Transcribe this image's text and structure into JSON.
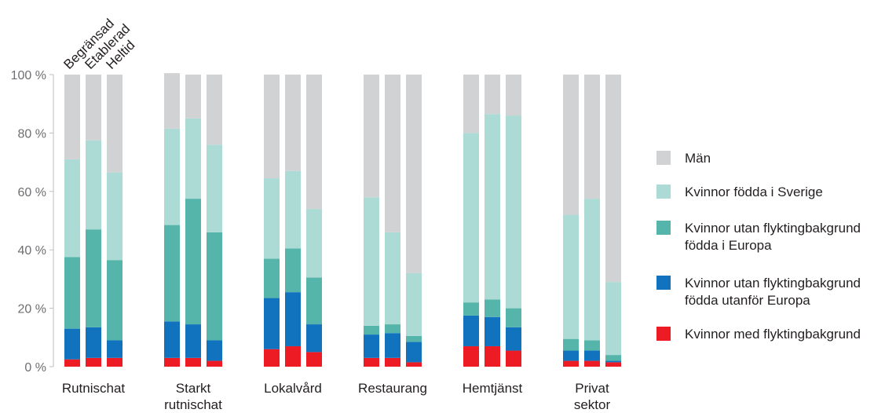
{
  "chart_data": {
    "type": "bar",
    "stacked": true,
    "percent": true,
    "ylim": [
      0,
      100
    ],
    "yticks": [
      "0 %",
      "20 %",
      "40 %",
      "60 %",
      "80 %",
      "100 %"
    ],
    "subcategories": [
      "Begränsad",
      "Etablerad",
      "Heltid"
    ],
    "groups": [
      {
        "label": [
          "Rutnischat"
        ]
      },
      {
        "label": [
          "Starkt",
          "rutnischat"
        ]
      },
      {
        "label": [
          "Lokalvård"
        ]
      },
      {
        "label": [
          "Restaurang"
        ]
      },
      {
        "label": [
          "Hemtjänst"
        ]
      },
      {
        "label": [
          "Privat",
          "sektor"
        ]
      }
    ],
    "series": [
      {
        "name": "Kvinnor med flyktingbakgrund",
        "color": "#ed1c24",
        "values": [
          [
            2.5,
            3,
            3
          ],
          [
            3,
            3,
            2
          ],
          [
            6,
            7,
            5
          ],
          [
            3,
            3,
            1.5
          ],
          [
            7,
            7,
            5.5
          ],
          [
            2,
            2,
            1.5
          ]
        ]
      },
      {
        "name": "Kvinnor utan flyktingbakgrund födda utanför Europa",
        "color": "#1173be",
        "values": [
          [
            10.5,
            10.5,
            6
          ],
          [
            12.5,
            11.5,
            7
          ],
          [
            17.5,
            18.5,
            9.5
          ],
          [
            8,
            8.5,
            7
          ],
          [
            10.5,
            10,
            8
          ],
          [
            3.5,
            3.5,
            0.5
          ]
        ]
      },
      {
        "name": "Kvinnor utan flyktingbakgrund födda i Europa",
        "color": "#55b5ab",
        "values": [
          [
            24.5,
            33.5,
            27.5
          ],
          [
            33,
            43,
            37
          ],
          [
            13.5,
            15,
            16
          ],
          [
            3,
            3,
            2
          ],
          [
            4.5,
            6,
            6.5
          ],
          [
            4,
            3.5,
            2
          ]
        ]
      },
      {
        "name": "Kvinnor födda i Sverige",
        "color": "#acdbd5",
        "values": [
          [
            33.5,
            30.5,
            30
          ],
          [
            33,
            27.5,
            30
          ],
          [
            27.5,
            26.5,
            23.5
          ],
          [
            44,
            31.5,
            21.5
          ],
          [
            58,
            63.5,
            66
          ],
          [
            42.5,
            48.5,
            25
          ]
        ]
      },
      {
        "name": "Män",
        "color": "#d1d2d4",
        "values": [
          [
            29,
            22.5,
            33.5
          ],
          [
            19,
            15,
            24
          ],
          [
            35.5,
            33,
            46
          ],
          [
            42,
            54,
            68
          ],
          [
            20,
            13.5,
            14
          ],
          [
            48,
            42.5,
            71
          ]
        ]
      }
    ],
    "legend": {
      "placement": "right",
      "entries": [
        {
          "text": [
            "Män"
          ],
          "color": "#d1d2d4"
        },
        {
          "text": [
            "Kvinnor födda i Sverige"
          ],
          "color": "#acdbd5"
        },
        {
          "text": [
            "Kvinnor utan flyktingbakgrund",
            "födda i Europa"
          ],
          "color": "#55b5ab"
        },
        {
          "text": [
            "Kvinnor utan flyktingbakgrund",
            "födda utanför Europa"
          ],
          "color": "#1173be"
        },
        {
          "text": [
            "Kvinnor med flyktingbakgrund"
          ],
          "color": "#ed1c24"
        }
      ]
    },
    "grid": false,
    "axis_color": "#bcbec0",
    "tick_color": "#6d6e71"
  }
}
